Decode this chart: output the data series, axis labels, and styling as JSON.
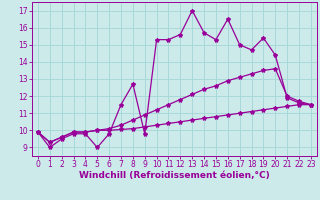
{
  "background_color": "#cceaea",
  "line_color": "#990099",
  "xlabel": "Windchill (Refroidissement éolien,°C)",
  "xlim": [
    -0.5,
    23.5
  ],
  "ylim": [
    8.5,
    17.5
  ],
  "yticks": [
    9,
    10,
    11,
    12,
    13,
    14,
    15,
    16,
    17
  ],
  "xticks": [
    0,
    1,
    2,
    3,
    4,
    5,
    6,
    7,
    8,
    9,
    10,
    11,
    12,
    13,
    14,
    15,
    16,
    17,
    18,
    19,
    20,
    21,
    22,
    23
  ],
  "series1_x": [
    0,
    1,
    2,
    3,
    4,
    5,
    6,
    7,
    8,
    9,
    10,
    11,
    12,
    13,
    14,
    15,
    16,
    17,
    18,
    19,
    20,
    21,
    22,
    23
  ],
  "series1_y": [
    9.9,
    9.0,
    9.5,
    9.8,
    9.8,
    9.0,
    9.8,
    11.5,
    12.7,
    9.8,
    15.3,
    15.3,
    15.6,
    17.0,
    15.7,
    15.3,
    16.5,
    15.0,
    14.7,
    15.4,
    14.4,
    11.9,
    11.6,
    11.5
  ],
  "series2_x": [
    0,
    1,
    2,
    3,
    4,
    5,
    6,
    7,
    8,
    9,
    10,
    11,
    12,
    13,
    14,
    15,
    16,
    17,
    18,
    19,
    20,
    21,
    22,
    23
  ],
  "series2_y": [
    9.9,
    9.3,
    9.6,
    9.9,
    9.9,
    10.0,
    10.1,
    10.3,
    10.6,
    10.9,
    11.2,
    11.5,
    11.8,
    12.1,
    12.4,
    12.6,
    12.9,
    13.1,
    13.3,
    13.5,
    13.6,
    12.0,
    11.7,
    11.5
  ],
  "series3_x": [
    0,
    1,
    2,
    3,
    4,
    5,
    6,
    7,
    8,
    9,
    10,
    11,
    12,
    13,
    14,
    15,
    16,
    17,
    18,
    19,
    20,
    21,
    22,
    23
  ],
  "series3_y": [
    9.9,
    9.3,
    9.6,
    9.9,
    9.9,
    10.0,
    10.0,
    10.05,
    10.1,
    10.2,
    10.3,
    10.4,
    10.5,
    10.6,
    10.7,
    10.8,
    10.9,
    11.0,
    11.1,
    11.2,
    11.3,
    11.4,
    11.5,
    11.5
  ],
  "marker": "*",
  "markersize": 3,
  "linewidth": 0.9,
  "tick_fontsize": 5.5,
  "label_fontsize": 6.5,
  "grid_color": "#a8d8d8",
  "grid_linewidth": 0.7
}
